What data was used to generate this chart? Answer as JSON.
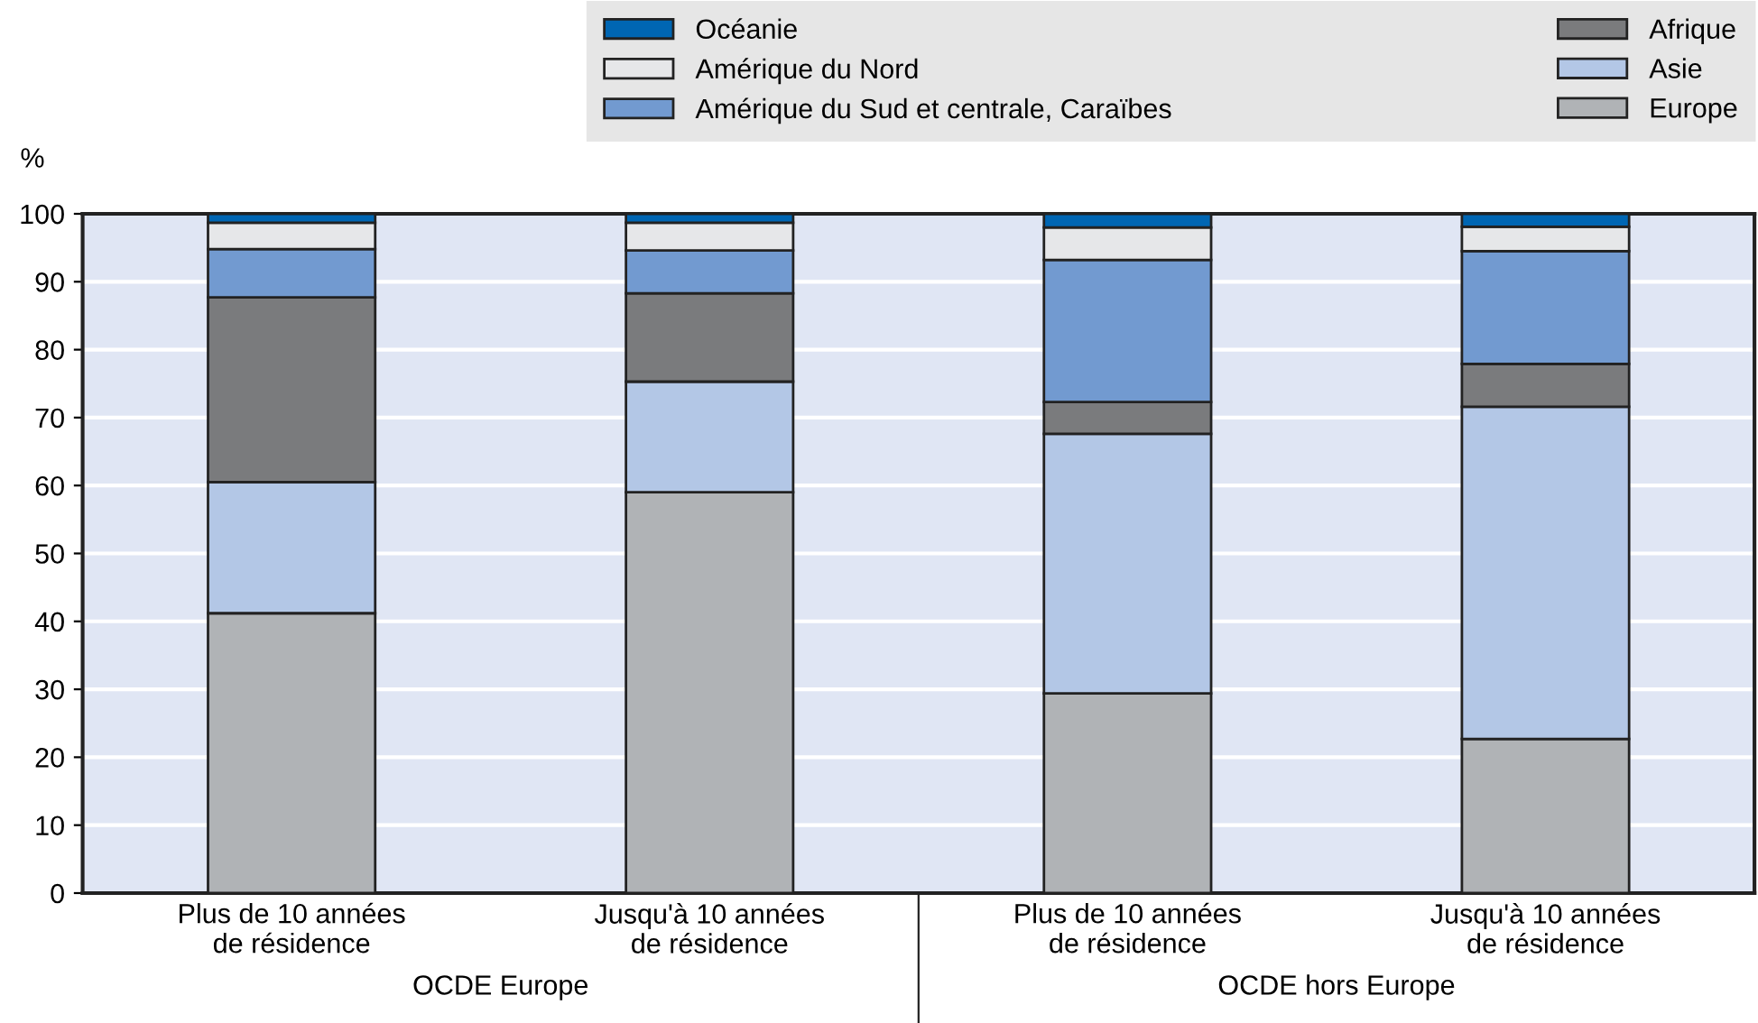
{
  "chart_data": {
    "type": "bar",
    "stacked": true,
    "ylabel": "%",
    "categories": [
      "Plus de 10 années\nde résidence",
      "Jusqu'à 10 années\nde résidence",
      "Plus de 10 années\nde résidence",
      "Jusqu'à 10 années\nde résidence"
    ],
    "series": [
      {
        "name": "Europe",
        "color": "#b0b3b6",
        "values": [
          41.2,
          59.0,
          29.4,
          22.7
        ]
      },
      {
        "name": "Asie",
        "color": "#b3c7e6",
        "values": [
          19.3,
          16.3,
          38.2,
          48.9
        ]
      },
      {
        "name": "Afrique",
        "color": "#7a7b7d",
        "values": [
          27.2,
          13.0,
          4.7,
          6.3
        ]
      },
      {
        "name": "Amérique du Sud et centrale, Caraïbes",
        "color": "#729ad0",
        "values": [
          7.1,
          6.3,
          20.9,
          16.6
        ]
      },
      {
        "name": "Amérique du Nord",
        "color": "#e6e7e9",
        "values": [
          3.9,
          4.1,
          4.8,
          3.6
        ]
      },
      {
        "name": "Océanie",
        "color": "#0066b3",
        "values": [
          1.3,
          1.3,
          2.0,
          1.9
        ]
      }
    ],
    "annotations": [
      "OCDE Europe",
      "OCDE hors Europe"
    ],
    "ylim": [
      0,
      100
    ],
    "yticks": [
      0,
      10,
      20,
      30,
      40,
      50,
      60,
      70,
      80,
      90,
      100
    ],
    "grid": "y",
    "legend": "top"
  }
}
